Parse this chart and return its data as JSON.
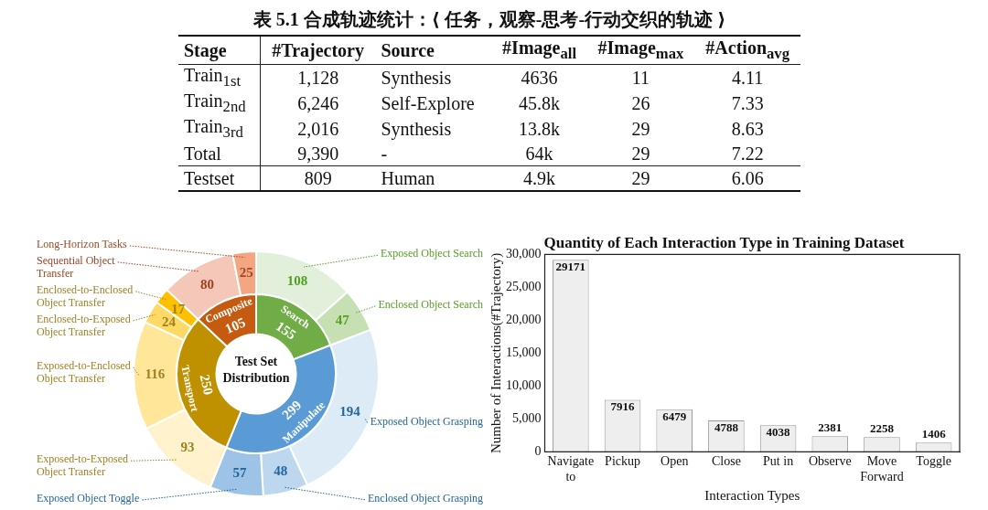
{
  "chart_data": [
    {
      "type": "other",
      "title": "表 5.1 合成轨迹统计：⟨ 任务，观察-思考-行动交织的轨迹 ⟩",
      "categories": [
        "Stage",
        "#Trajectory",
        "Source",
        "#Image$_{all}$",
        "#Image$_{max}$",
        "#Action$_{avg}$"
      ],
      "annotations": [
        "Train$_{1st}$",
        "1,128",
        "Synthesis",
        "4636",
        "11",
        "4.11",
        "Train$_{2nd}$",
        "6,246",
        "Self-Explore",
        "45.8k",
        "26",
        "7.33",
        "Train$_{3rd}$",
        "2,016",
        "Synthesis",
        "13.8k",
        "29",
        "8.63",
        "Total",
        "9,390",
        "-",
        "64k",
        "29",
        "7.22",
        "Testset",
        "809",
        "Human",
        "4.9k",
        "29",
        "6.06"
      ]
    },
    {
      "type": "donut",
      "categories": [
        "Exposed Object Search",
        "Enclosed Object Search",
        "Exposed Object Grasping",
        "Enclosed Object Grasping",
        "Exposed Object Toggle",
        "Exposed-to-Exposed Object Transfer",
        "Exposed-to-Enclosed Object Transfer",
        "Enclosed-to-Exposed Object Transfer",
        "Enclosed-to-Enclosed Object Transfer",
        "Sequential Object Transfer",
        "Long-Horizon Tasks"
      ],
      "values": [
        108,
        47,
        194,
        48,
        57,
        93,
        116,
        24,
        17,
        80,
        25
      ],
      "colors": [
        "#e2efda",
        "#c6e0b4",
        "#ddebf7",
        "#bdd7ee",
        "#9dc3e6",
        "#fff2cc",
        "#ffe699",
        "#ffd966",
        "#ffc000",
        "#f4c7b8",
        "#f4a582"
      ],
      "data_labels": true
    },
    {
      "type": "donut",
      "title": "Test Set Distribution",
      "categories": [
        "Search",
        "Manipulate",
        "Transport",
        "Composite"
      ],
      "values": [
        155,
        299,
        250,
        105
      ],
      "colors": [
        "#70ad47",
        "#5b9bd5",
        "#bf9000",
        "#c55a11"
      ],
      "data_labels": true
    },
    {
      "type": "bar",
      "title": "Quantity of Each Interaction Type in Training Dataset",
      "xlabel": "Interaction Types",
      "ylabel": "Number of Interactions(#Trajectory)",
      "categories": [
        "Navigate to",
        "Pickup",
        "Open",
        "Close",
        "Put in",
        "Observe",
        "Move Forward",
        "Toggle"
      ],
      "values": [
        29171,
        7916,
        6479,
        4788,
        4038,
        2381,
        2258,
        1406
      ],
      "color": "#eeeeee",
      "ylim": [
        0,
        30000
      ],
      "yticks": [
        0,
        {
          "value": 5000,
          "label": "5,000"
        },
        {
          "value": 10000,
          "label": "10,000"
        },
        {
          "value": 15000,
          "label": "15,000"
        },
        {
          "value": 20000,
          "label": "20,000"
        },
        {
          "value": 25000,
          "label": "25,000"
        },
        {
          "value": 30000,
          "label": "30,000"
        }
      ],
      "grid": false,
      "legend": false,
      "data_labels": true
    }
  ]
}
